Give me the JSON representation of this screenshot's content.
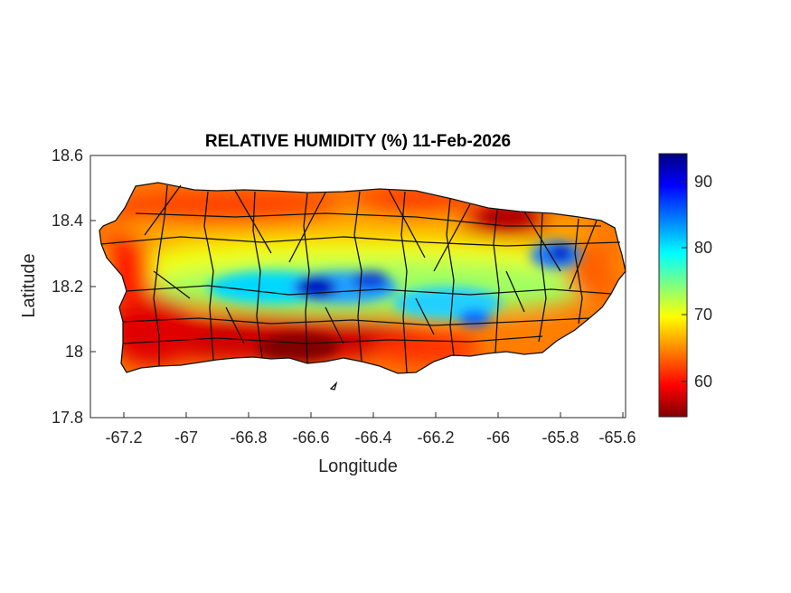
{
  "title": "RELATIVE HUMIDITY (%) 11-Feb-2026",
  "xlabel": "Longitude",
  "ylabel": "Latitude",
  "x_ticks": [
    "-67.2",
    "-67",
    "-66.8",
    "-66.6",
    "-66.4",
    "-66.2",
    "-66",
    "-65.8",
    "-65.6"
  ],
  "y_ticks": [
    "18.6",
    "18.4",
    "18.2",
    "18",
    "17.8"
  ],
  "colorbar": {
    "ticks": [
      "90",
      "80",
      "70",
      "60"
    ],
    "range": [
      55,
      94
    ],
    "colormap": "jet",
    "colors": [
      "#7f0000",
      "#ff0000",
      "#ffff00",
      "#00ffff",
      "#0000ff",
      "#00007f"
    ]
  },
  "chart_data": {
    "type": "heatmap",
    "title": "RELATIVE HUMIDITY (%) 11-Feb-2026",
    "xlabel": "Longitude",
    "ylabel": "Latitude",
    "xlim": [
      -67.3,
      -65.58
    ],
    "ylim": [
      17.8,
      18.6
    ],
    "units": "%",
    "clim": [
      55,
      94
    ],
    "hotspots": [
      {
        "lon": -66.55,
        "lat": 18.18,
        "value": 92
      },
      {
        "lon": -66.45,
        "lat": 18.2,
        "value": 85
      },
      {
        "lon": -66.7,
        "lat": 18.18,
        "value": 82
      },
      {
        "lon": -66.85,
        "lat": 18.15,
        "value": 78
      },
      {
        "lon": -66.1,
        "lat": 18.15,
        "value": 84
      },
      {
        "lon": -65.8,
        "lat": 18.3,
        "value": 88
      },
      {
        "lon": -65.95,
        "lat": 18.27,
        "value": 78
      },
      {
        "lon": -66.3,
        "lat": 18.25,
        "value": 74
      },
      {
        "lon": -66.6,
        "lat": 17.98,
        "value": 55
      },
      {
        "lon": -66.85,
        "lat": 17.98,
        "value": 56
      },
      {
        "lon": -67.15,
        "lat": 18.05,
        "value": 57
      },
      {
        "lon": -66.1,
        "lat": 18.4,
        "value": 57
      },
      {
        "lon": -66.4,
        "lat": 18.45,
        "value": 60
      },
      {
        "lon": -66.9,
        "lat": 18.45,
        "value": 62
      },
      {
        "lon": -65.7,
        "lat": 18.3,
        "value": 64
      },
      {
        "lon": -66.3,
        "lat": 17.97,
        "value": 62
      }
    ]
  }
}
